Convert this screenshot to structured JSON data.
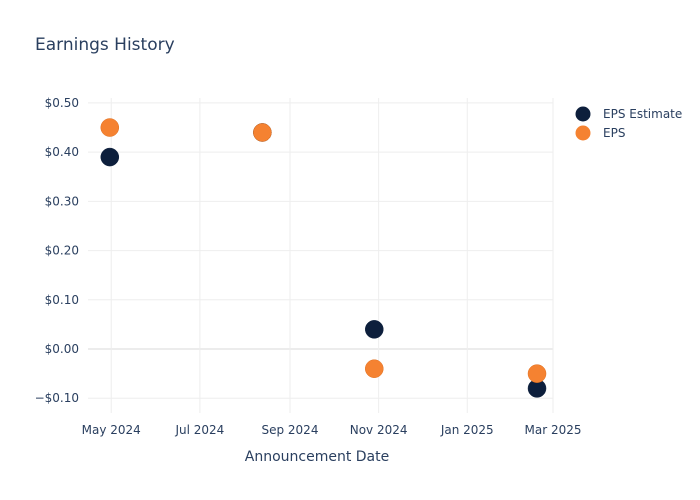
{
  "chart_data": {
    "type": "scatter",
    "title": "Earnings History",
    "xlabel": "Announcement Date",
    "ylabel": "",
    "x_range": [
      "2024-04-15",
      "2025-03-01"
    ],
    "ylim": [
      -0.13,
      0.51
    ],
    "x_ticks": [
      {
        "date": "2024-05-01",
        "label": "May 2024"
      },
      {
        "date": "2024-07-01",
        "label": "Jul 2024"
      },
      {
        "date": "2024-09-01",
        "label": "Sep 2024"
      },
      {
        "date": "2024-11-01",
        "label": "Nov 2024"
      },
      {
        "date": "2025-01-01",
        "label": "Jan 2025"
      },
      {
        "date": "2025-03-01",
        "label": "Mar 2025"
      }
    ],
    "y_ticks": [
      {
        "value": 0.5,
        "label": "$0.50"
      },
      {
        "value": 0.4,
        "label": "$0.40"
      },
      {
        "value": 0.3,
        "label": "$0.30"
      },
      {
        "value": 0.2,
        "label": "$0.20"
      },
      {
        "value": 0.1,
        "label": "$0.10"
      },
      {
        "value": 0.0,
        "label": "$0.00"
      },
      {
        "value": -0.1,
        "label": "−$0.10"
      }
    ],
    "grid": true,
    "legend_position": "top-right",
    "series": [
      {
        "name": "EPS Estimate",
        "color": "#0d1f3c",
        "points": [
          {
            "x": "2024-04-30",
            "y": 0.39
          },
          {
            "x": "2024-08-13",
            "y": 0.44
          },
          {
            "x": "2024-10-29",
            "y": 0.04
          },
          {
            "x": "2025-02-18",
            "y": -0.08
          }
        ]
      },
      {
        "name": "EPS",
        "color": "#f58231",
        "points": [
          {
            "x": "2024-04-30",
            "y": 0.45
          },
          {
            "x": "2024-08-13",
            "y": 0.44
          },
          {
            "x": "2024-10-29",
            "y": -0.04
          },
          {
            "x": "2025-02-18",
            "y": -0.05
          }
        ]
      }
    ]
  }
}
